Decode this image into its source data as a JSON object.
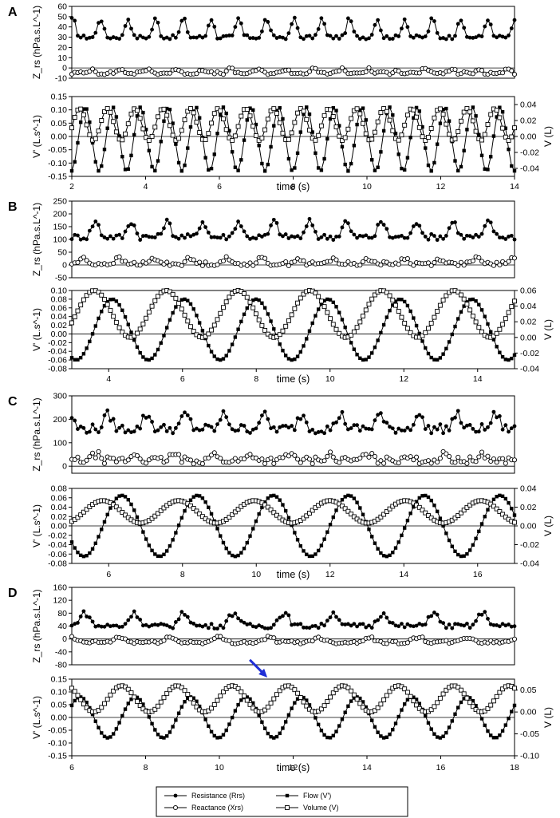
{
  "legend": {
    "resistance": "Resistance (Rrs)",
    "reactance": "Reactance (Xrs)",
    "flow": "Flow (V')",
    "volume": "Volume (V)"
  },
  "colors": {
    "series": "#000000",
    "arrow": "#1f2fd6"
  },
  "chart_data": [
    {
      "panel": "A",
      "type": "line",
      "xlabel": "time (s)",
      "xlim": [
        2,
        14
      ],
      "xticks": [
        2,
        4,
        6,
        8,
        10,
        12,
        14
      ],
      "impedance": {
        "ylabel": "Z_rs (hPa.s.L^-1)",
        "ylim": [
          -10,
          60
        ],
        "yticks": [
          -10,
          0,
          10,
          20,
          30,
          40,
          50,
          60
        ],
        "series": [
          {
            "name": "Resistance (Rrs)",
            "marker": "filled-circle",
            "baseline": 30,
            "amplitude": 18,
            "period": 0.75,
            "phase": 0.3,
            "noise": 2
          },
          {
            "name": "Reactance (Xrs)",
            "marker": "open-circle",
            "baseline": -5,
            "amplitude": 4,
            "period": 0.75,
            "phase": 0.6,
            "noise": 1.5
          }
        ]
      },
      "flow_volume": {
        "ylabel": "V' (L.s^-1)",
        "ylim": [
          -0.15,
          0.15
        ],
        "yticks": [
          -0.15,
          -0.1,
          -0.05,
          0.0,
          0.05,
          0.1,
          0.15
        ],
        "y2label": "V (L)",
        "y2lim": [
          -0.05,
          0.05
        ],
        "y2ticks": [
          -0.04,
          -0.02,
          0.0,
          0.02,
          0.04
        ],
        "series": [
          {
            "name": "Flow (V')",
            "axis": "left",
            "marker": "filled-square",
            "amplitude": 0.12,
            "offset": -0.01,
            "period": 0.75,
            "phase": 0.1
          },
          {
            "name": "Volume (V)",
            "axis": "right",
            "marker": "open-square",
            "amplitude": 0.02,
            "offset": 0.015,
            "period": 0.75,
            "phase": 0.3
          }
        ]
      }
    },
    {
      "panel": "B",
      "type": "line",
      "xlabel": "time (s)",
      "xlim": [
        3,
        15
      ],
      "xticks": [
        4,
        6,
        8,
        10,
        12,
        14
      ],
      "impedance": {
        "ylabel": "Z_rs (hPa.s.L^-1)",
        "ylim": [
          -50,
          250
        ],
        "yticks": [
          -50,
          0,
          50,
          100,
          150,
          200,
          250
        ],
        "series": [
          {
            "name": "Resistance (Rrs)",
            "marker": "filled-circle",
            "baseline": 110,
            "amplitude": 60,
            "period": 0.97,
            "phase": 0.25,
            "noise": 12
          },
          {
            "name": "Reactance (Xrs)",
            "marker": "open-circle",
            "baseline": 5,
            "amplitude": 20,
            "period": 0.97,
            "phase": 0.6,
            "noise": 8
          }
        ]
      },
      "flow_volume": {
        "ylabel": "V' (L.s^-1)",
        "ylim": [
          -0.08,
          0.1
        ],
        "yticks": [
          -0.08,
          -0.06,
          -0.04,
          -0.02,
          0.0,
          0.02,
          0.04,
          0.06,
          0.08,
          0.1
        ],
        "y2label": "V (L)",
        "y2lim": [
          -0.04,
          0.06
        ],
        "y2ticks": [
          -0.04,
          -0.02,
          0.0,
          0.02,
          0.04,
          0.06
        ],
        "series": [
          {
            "name": "Flow (V')",
            "axis": "left",
            "marker": "filled-square",
            "amplitude": 0.07,
            "offset": 0.01,
            "period": 1.95,
            "phase": 0.15
          },
          {
            "name": "Volume (V)",
            "axis": "right",
            "marker": "open-square",
            "amplitude": 0.03,
            "offset": 0.03,
            "period": 1.95,
            "phase": 0.4
          }
        ]
      }
    },
    {
      "panel": "C",
      "type": "line",
      "xlabel": "time (s)",
      "xlim": [
        5,
        17
      ],
      "xticks": [
        6,
        8,
        10,
        12,
        14,
        16
      ],
      "impedance": {
        "ylabel": "Z_rs (hPa.s.L^-1)",
        "ylim": [
          -30,
          300
        ],
        "yticks": [
          0,
          100,
          200,
          300
        ],
        "series": [
          {
            "name": "Resistance (Rrs)",
            "marker": "filled-circle",
            "baseline": 160,
            "amplitude": 60,
            "period": 1.05,
            "phase": 0.3,
            "noise": 20
          },
          {
            "name": "Reactance (Xrs)",
            "marker": "open-circle",
            "baseline": 25,
            "amplitude": 25,
            "period": 1.05,
            "phase": 0.6,
            "noise": 15
          }
        ]
      },
      "flow_volume": {
        "ylabel": "V' (L.s^-1)",
        "ylim": [
          -0.08,
          0.08
        ],
        "yticks": [
          -0.08,
          -0.06,
          -0.04,
          -0.02,
          0.0,
          0.02,
          0.04,
          0.06,
          0.08
        ],
        "y2label": "V (L)",
        "y2lim": [
          -0.04,
          0.04
        ],
        "y2ticks": [
          -0.04,
          -0.02,
          0.0,
          0.02,
          0.04
        ],
        "series": [
          {
            "name": "Flow (V')",
            "axis": "left",
            "marker": "filled-square",
            "amplitude": 0.065,
            "offset": 0.0,
            "period": 2.05,
            "phase": 0.15
          },
          {
            "name": "Volume (V)",
            "axis": "right",
            "marker": "open-square",
            "amplitude": 0.012,
            "offset": 0.015,
            "period": 2.05,
            "phase": 0.4
          }
        ]
      }
    },
    {
      "panel": "D",
      "type": "line",
      "xlabel": "time (s)",
      "xlim": [
        6,
        18
      ],
      "xticks": [
        6,
        8,
        10,
        12,
        14,
        16,
        18
      ],
      "impedance": {
        "ylabel": "Z_rs (hPa.s.L^-1)",
        "ylim": [
          -80,
          160
        ],
        "yticks": [
          -80,
          -40,
          0,
          40,
          80,
          120,
          160
        ],
        "series": [
          {
            "name": "Resistance (Rrs)",
            "marker": "filled-circle",
            "baseline": 40,
            "amplitude": 40,
            "period": 1.35,
            "phase": 0.3,
            "noise": 8
          },
          {
            "name": "Reactance (Xrs)",
            "marker": "open-circle",
            "baseline": -10,
            "amplitude": 15,
            "period": 1.35,
            "phase": 0.6,
            "noise": 5
          }
        ]
      },
      "flow_volume": {
        "ylabel": "V' (L.s^-1)",
        "ylim": [
          -0.15,
          0.15
        ],
        "yticks": [
          -0.15,
          -0.1,
          -0.05,
          0.0,
          0.05,
          0.1,
          0.15
        ],
        "y2label": "V (L)",
        "y2lim": [
          -0.1,
          0.075
        ],
        "y2ticks": [
          -0.1,
          -0.05,
          0.0,
          0.05
        ],
        "series": [
          {
            "name": "Flow (V')",
            "axis": "left",
            "marker": "filled-square",
            "amplitude": 0.08,
            "offset": 0.0,
            "period": 1.5,
            "phase": 0.1
          },
          {
            "name": "Volume (V)",
            "axis": "right",
            "marker": "open-square",
            "amplitude": 0.03,
            "offset": 0.03,
            "period": 1.5,
            "phase": 0.35
          }
        ]
      },
      "annotations": [
        {
          "type": "arrow",
          "color": "#1f2fd6",
          "target_x": 11.3,
          "target_y2": 0.068
        }
      ]
    }
  ]
}
